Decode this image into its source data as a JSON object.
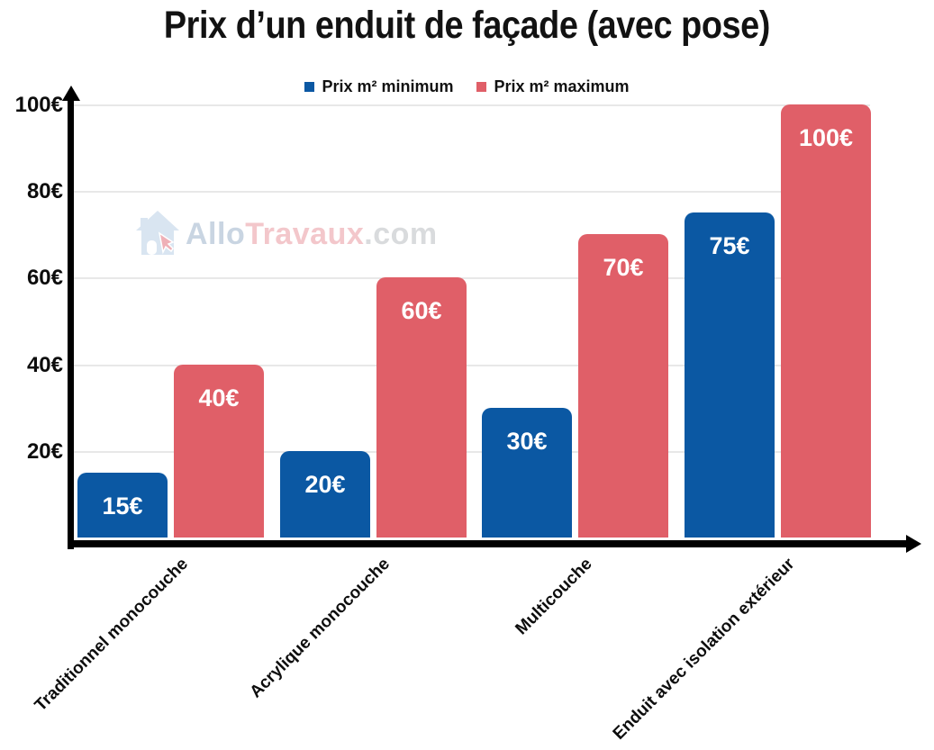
{
  "title": "Prix d’un enduit de façade (avec pose)",
  "legend": [
    {
      "label": "Prix m² minimum",
      "color": "#0b58a3"
    },
    {
      "label": "Prix m² maximum",
      "color": "#e05f68"
    }
  ],
  "watermark": {
    "allo": "Allo",
    "travaux": "Travaux",
    "dotcom": ".com",
    "house_color": "#d9e5f1",
    "cursor_color": "#efb0b7",
    "allo_color": "#c9d5e2",
    "travaux_color": "#f3c7cb",
    "dotcom_color": "#d9dbdd"
  },
  "colors": {
    "bar_min": "#0b58a3",
    "bar_max": "#e05f68",
    "axis": "#000000",
    "grid": "#e8e8e8",
    "value_label": "#ffffff"
  },
  "chart_data": {
    "type": "bar",
    "title": "Prix d’un enduit de façade (avec pose)",
    "categories": [
      "Traditionnel monocouche",
      "Acrylique monocouche",
      "Multicouche",
      "Enduit avec isolation extérieur"
    ],
    "series": [
      {
        "name": "Prix m² minimum",
        "color": "#0b58a3",
        "values": [
          15,
          20,
          30,
          75
        ],
        "labels": [
          "15€",
          "20€",
          "30€",
          "75€"
        ]
      },
      {
        "name": "Prix m² maximum",
        "color": "#e05f68",
        "values": [
          40,
          60,
          70,
          100
        ],
        "labels": [
          "40€",
          "60€",
          "70€",
          "100€"
        ]
      }
    ],
    "unit": "€",
    "y_ticks": [
      20,
      40,
      60,
      80,
      100
    ],
    "y_tick_labels": [
      "20€",
      "40€",
      "60€",
      "80€",
      "100€"
    ],
    "ylim": [
      0,
      100
    ],
    "grid": true,
    "legend_position": "top",
    "xlabel": "",
    "ylabel": ""
  }
}
